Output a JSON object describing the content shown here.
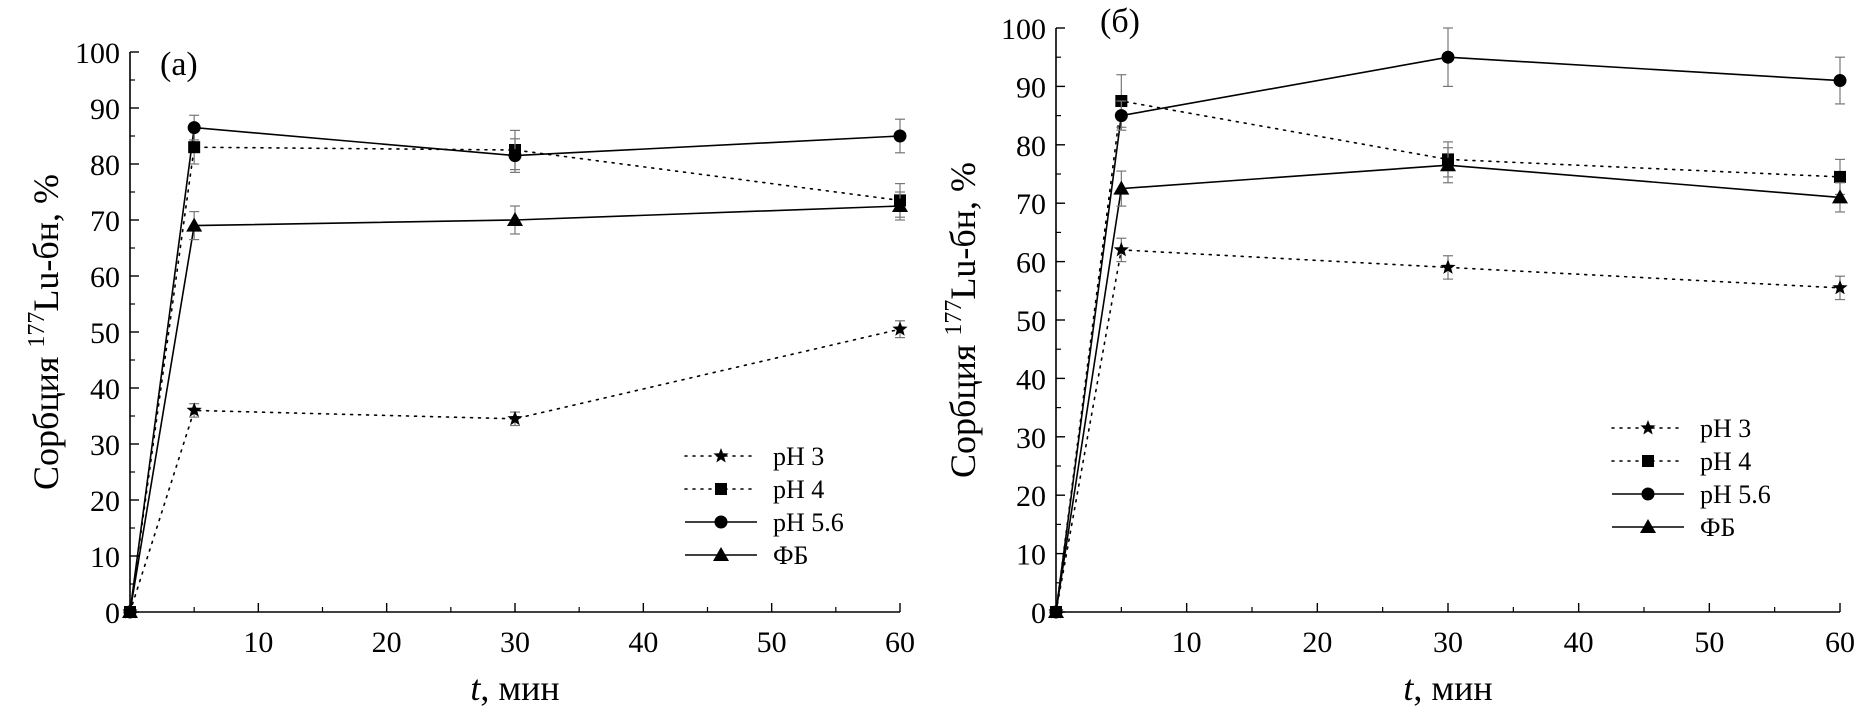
{
  "figure": {
    "panels": [
      {
        "label": "(a)",
        "xlabel_italic": "t",
        "xlabel_rest": ", мин",
        "ylabel_pre": "Сорбция ",
        "ylabel_sup": "177",
        "ylabel_post": "Lu-бн, %"
      },
      {
        "label": "(б)",
        "xlabel_italic": "t",
        "xlabel_rest": ", мин",
        "ylabel_pre": "Сорбция ",
        "ylabel_sup": "177",
        "ylabel_post": "Lu-бн, %"
      }
    ]
  },
  "chart_data": [
    {
      "type": "line",
      "panel_label": "(a)",
      "x": [
        0,
        5,
        30,
        60
      ],
      "xticks": [
        10,
        20,
        30,
        40,
        50,
        60
      ],
      "yticks": [
        0,
        10,
        20,
        30,
        40,
        50,
        60,
        70,
        80,
        90,
        100
      ],
      "xlim": [
        0,
        60
      ],
      "ylim": [
        0,
        100
      ],
      "xlabel": "t, мин",
      "ylabel": "Сорбция 177Lu-бн, %",
      "grid": false,
      "legend_position": "lower-right",
      "series": [
        {
          "name": "pH 3",
          "line": "dotted",
          "marker": "star",
          "values": [
            0,
            36,
            34.5,
            50.5
          ],
          "errors": [
            0,
            1.2,
            1.2,
            1.5
          ]
        },
        {
          "name": "pH 4",
          "line": "dotted",
          "marker": "square",
          "values": [
            0,
            83,
            82.5,
            73.5
          ],
          "errors": [
            0,
            3,
            3.5,
            3
          ]
        },
        {
          "name": "pH 5.6",
          "line": "solid",
          "marker": "circle",
          "values": [
            0,
            86.5,
            81.5,
            85
          ],
          "errors": [
            0,
            2.2,
            3,
            3
          ]
        },
        {
          "name": "ФБ",
          "line": "solid",
          "marker": "triangle",
          "values": [
            0,
            69,
            70,
            72.5
          ],
          "errors": [
            0,
            2.5,
            2.5,
            2.5
          ]
        }
      ]
    },
    {
      "type": "line",
      "panel_label": "(б)",
      "x": [
        0,
        5,
        30,
        60
      ],
      "xticks": [
        10,
        20,
        30,
        40,
        50,
        60
      ],
      "yticks": [
        0,
        10,
        20,
        30,
        40,
        50,
        60,
        70,
        80,
        90,
        100
      ],
      "xlim": [
        0,
        60
      ],
      "ylim": [
        0,
        100
      ],
      "xlabel": "t, мин",
      "ylabel": "Сорбция 177Lu-бн, %",
      "grid": false,
      "legend_position": "lower-right",
      "series": [
        {
          "name": "pH 3",
          "line": "dotted",
          "marker": "star",
          "values": [
            0,
            62,
            59,
            55.5
          ],
          "errors": [
            0,
            2,
            2,
            2
          ]
        },
        {
          "name": "pH 4",
          "line": "dotted",
          "marker": "square",
          "values": [
            0,
            87.5,
            77.5,
            74.5
          ],
          "errors": [
            0,
            4.5,
            3,
            3
          ]
        },
        {
          "name": "pH 5.6",
          "line": "solid",
          "marker": "circle",
          "values": [
            0,
            85,
            95,
            91
          ],
          "errors": [
            0,
            2.5,
            5,
            4
          ]
        },
        {
          "name": "ФБ",
          "line": "solid",
          "marker": "triangle",
          "values": [
            0,
            72.5,
            76.5,
            71
          ],
          "errors": [
            0,
            3,
            3,
            2.5
          ]
        }
      ]
    }
  ]
}
